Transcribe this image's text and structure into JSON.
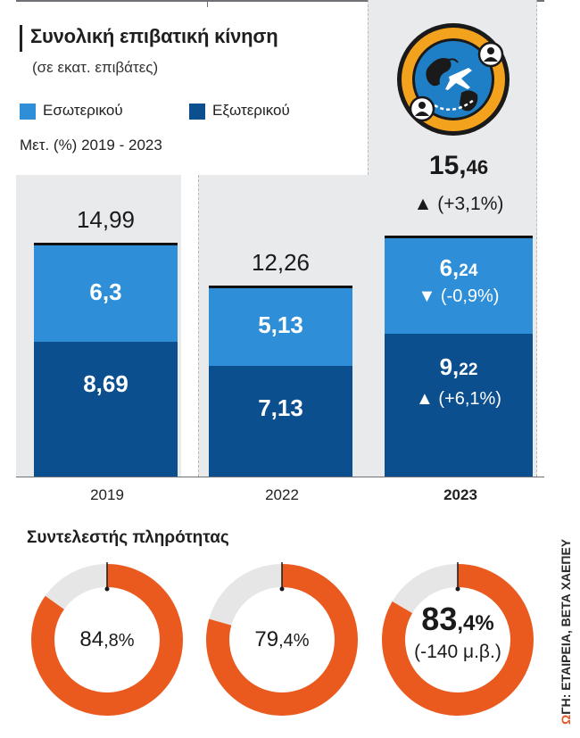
{
  "header": {
    "title": "Συνολική επιβατική κίνηση",
    "subtitle": "(σε εκατ. επιβάτες)",
    "note": "Μετ. (%) 2019 - 2023"
  },
  "colors": {
    "domestic": "#2e8fd8",
    "international": "#0b4f8f",
    "donut_fill": "#ea5a1f",
    "donut_track": "#e6e6e6",
    "background_band": "#e9eaec",
    "icon_ring": "#f3a21d",
    "icon_globe": "#1f7fc6"
  },
  "icon": "globe-airplane-people-icon",
  "chart_data": {
    "type": "bar",
    "stacked": true,
    "categories": [
      "2019",
      "2022",
      "2023"
    ],
    "series": [
      {
        "name": "Εξωτερικού",
        "values": [
          8.69,
          7.13,
          9.22
        ],
        "labels": [
          "8,69",
          "7,13",
          "9,22"
        ],
        "change_labels": [
          "",
          "",
          "(+6,1%)"
        ],
        "change_dir": [
          "",
          "",
          "up"
        ]
      },
      {
        "name": "Εσωτερικού",
        "values": [
          6.3,
          5.13,
          6.24
        ],
        "labels": [
          "6,3",
          "5,13",
          "6,24"
        ],
        "change_labels": [
          "",
          "",
          "(-0,9%)"
        ],
        "change_dir": [
          "",
          "",
          "down"
        ]
      }
    ],
    "totals": [
      14.99,
      12.26,
      15.46
    ],
    "total_labels": [
      "14,99",
      "12,26",
      "15,46"
    ],
    "total_change_label": "(+3,1%)",
    "ylim": [
      0,
      16
    ],
    "legend": [
      "Εσωτερικού",
      "Εξωτερικού"
    ],
    "legend_placement": "top-left",
    "grid": false
  },
  "load_factor": {
    "title": "Συντελεστής πληρότητας",
    "values": [
      84.8,
      79.4,
      83.4
    ],
    "labels": [
      "84,8%",
      "79,4%",
      "83,4%"
    ],
    "note_2023": "(-140 μ.β.)"
  },
  "source": {
    "logo_text": "Ω",
    "text": "ΓΗ: ΕΤΑΙΡΕΙΑ, ΒΕΤΑ ΧΑΕΠΕΥ"
  }
}
